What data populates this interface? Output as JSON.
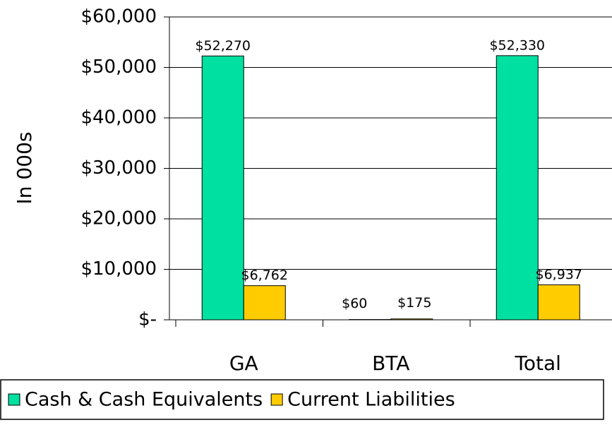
{
  "chart_data": {
    "type": "bar",
    "y_label": "In 000s",
    "categories": [
      "GA",
      "BTA",
      "Total"
    ],
    "series": [
      {
        "name": "Cash & Cash Equivalents",
        "color": "#00e0a0",
        "values": [
          52270,
          60,
          52330
        ],
        "value_labels": [
          "$52,270",
          "$60",
          "$52,330"
        ]
      },
      {
        "name": "Current Liabilities",
        "color": "#ffcc00",
        "values": [
          6762,
          175,
          6937
        ],
        "value_labels": [
          "$6,762",
          "$175",
          "$6,937"
        ]
      }
    ],
    "ylim": [
      0,
      60000
    ],
    "yticks": [
      {
        "value": 0,
        "label": "$-"
      },
      {
        "value": 10000,
        "label": "$10,000"
      },
      {
        "value": 20000,
        "label": "$20,000"
      },
      {
        "value": 30000,
        "label": "$30,000"
      },
      {
        "value": 40000,
        "label": "$40,000"
      },
      {
        "value": 50000,
        "label": "$50,000"
      },
      {
        "value": 60000,
        "label": "$60,000"
      }
    ],
    "grid": true
  }
}
